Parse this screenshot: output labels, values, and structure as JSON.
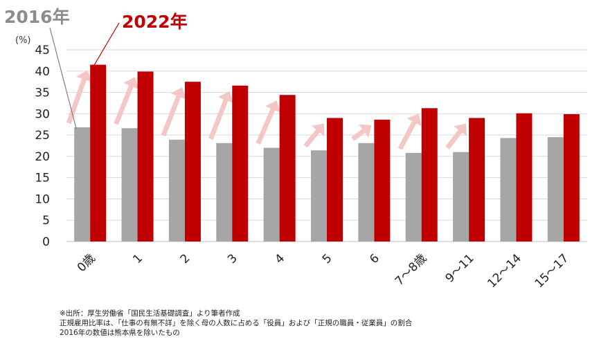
{
  "chart_data": {
    "type": "bar",
    "ylabel": "(%)",
    "ylim": [
      0,
      45
    ],
    "yticks": [
      0,
      5,
      10,
      15,
      20,
      25,
      30,
      35,
      40,
      45
    ],
    "grid": true,
    "categories": [
      "0歳",
      "1",
      "2",
      "3",
      "4",
      "5",
      "6",
      "7～8歳",
      "9～11",
      "12～14",
      "15～17"
    ],
    "series": [
      {
        "name": "2016年",
        "color": "#a6a6a6",
        "values": [
          26.8,
          26.6,
          23.9,
          23.1,
          22.0,
          21.4,
          23.1,
          20.8,
          21.0,
          24.3,
          24.5
        ]
      },
      {
        "name": "2022年",
        "color": "#c00000",
        "values": [
          41.5,
          39.9,
          37.5,
          36.6,
          34.4,
          29.0,
          28.6,
          31.3,
          29.0,
          30.1,
          29.9
        ]
      }
    ],
    "arrow_color": "#f5c6c6",
    "arrow_categories": [
      "0歳",
      "1",
      "2",
      "3",
      "4",
      "5",
      "6",
      "7～8歳",
      "9～11"
    ]
  },
  "notes": [
    "※出所：厚生労働省「国民生活基礎調査」より筆者作成",
    "正規雇用比率は、「仕事の有無不詳」を除く母の人数に占める「役員」および「正規の職員・従業員」の割合",
    "2016年の数値は熊本県を除いたもの"
  ]
}
